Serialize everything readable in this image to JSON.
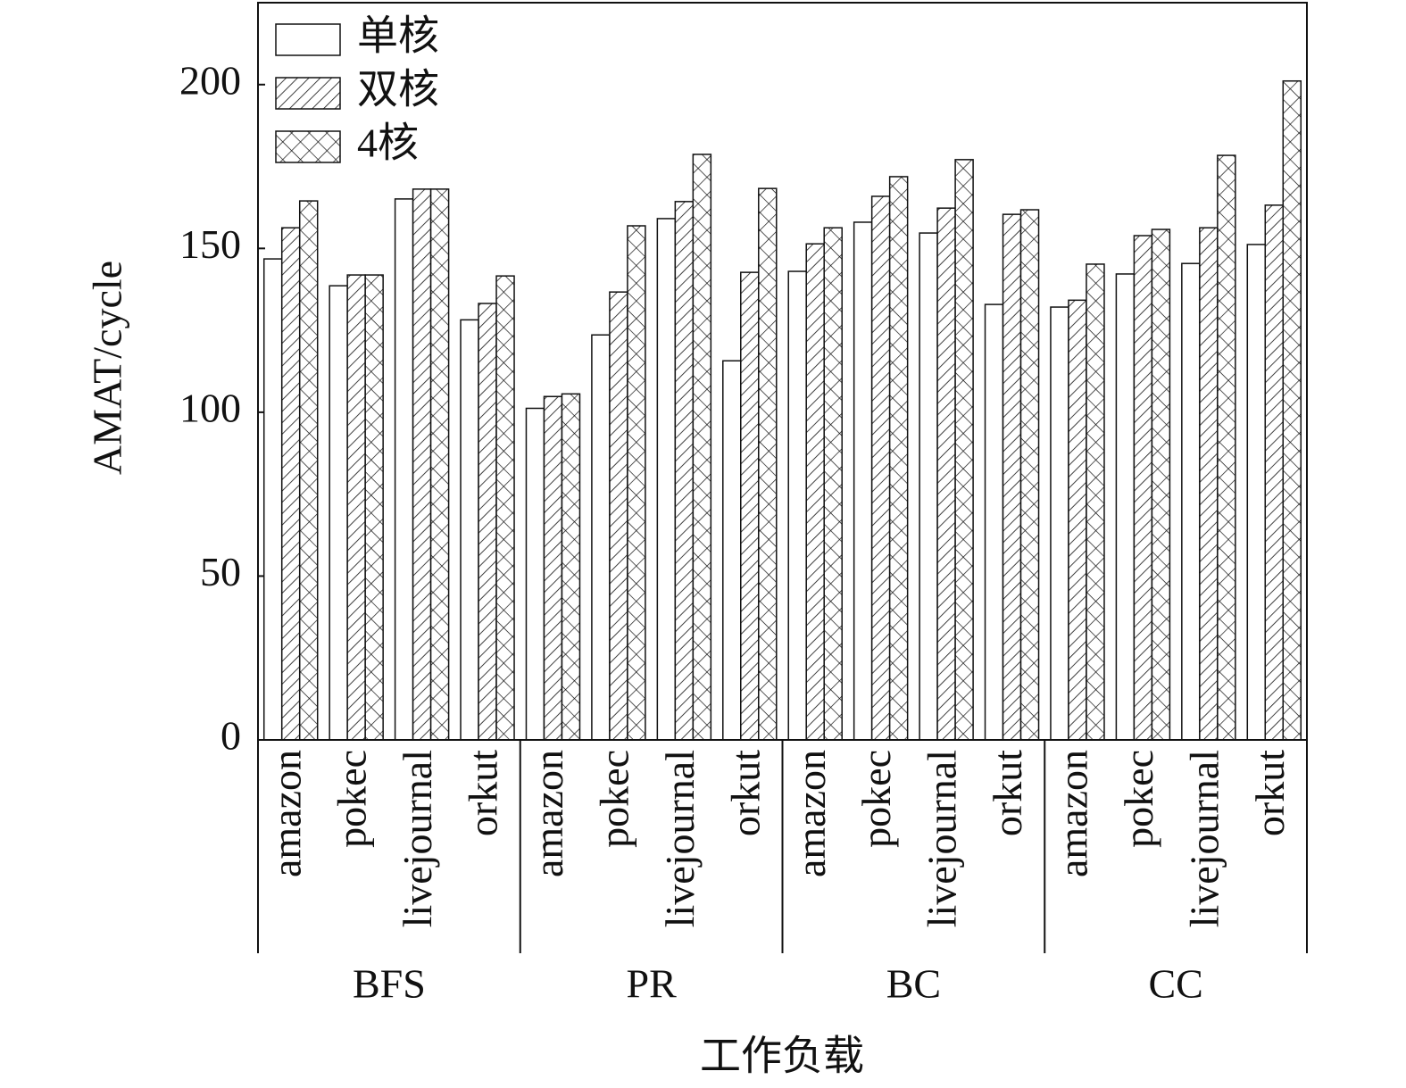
{
  "chart_data": {
    "type": "bar",
    "categories": [
      "amazon",
      "pokec",
      "livejournal",
      "orkut",
      "amazon",
      "pokec",
      "livejournal",
      "orkut",
      "amazon",
      "pokec",
      "livejournal",
      "orkut",
      "amazon",
      "pokec",
      "livejournal",
      "orkut"
    ],
    "groups": [
      "BFS",
      "PR",
      "BC",
      "CC"
    ],
    "x_label": "工作负载",
    "y_label": "AMAT/cycle",
    "series": [
      {
        "name": "单核",
        "color": "#ffffff",
        "pattern": "none",
        "values": [
          146.8,
          138.6,
          165.1,
          128.2,
          101.2,
          123.6,
          159.1,
          115.7,
          143.0,
          158.0,
          154.7,
          132.9,
          132.1,
          142.2,
          145.4,
          151.2
        ]
      },
      {
        "name": "双核",
        "color": "#ffffff",
        "pattern": "hatch",
        "values": [
          156.3,
          141.9,
          168.1,
          133.2,
          104.8,
          136.7,
          164.3,
          142.7,
          151.4,
          165.9,
          162.3,
          160.4,
          134.2,
          153.9,
          156.3,
          163.2
        ]
      },
      {
        "name": "4核",
        "color": "#ffffff",
        "pattern": "cross",
        "values": [
          164.5,
          141.9,
          168.1,
          141.6,
          105.6,
          156.9,
          178.7,
          168.3,
          156.3,
          171.9,
          177.1,
          161.8,
          145.2,
          155.8,
          178.4,
          201.1
        ]
      }
    ],
    "ylim": [
      0,
      225
    ],
    "yticks": [
      0,
      50,
      100,
      150,
      200
    ],
    "legend": "upper-left"
  }
}
